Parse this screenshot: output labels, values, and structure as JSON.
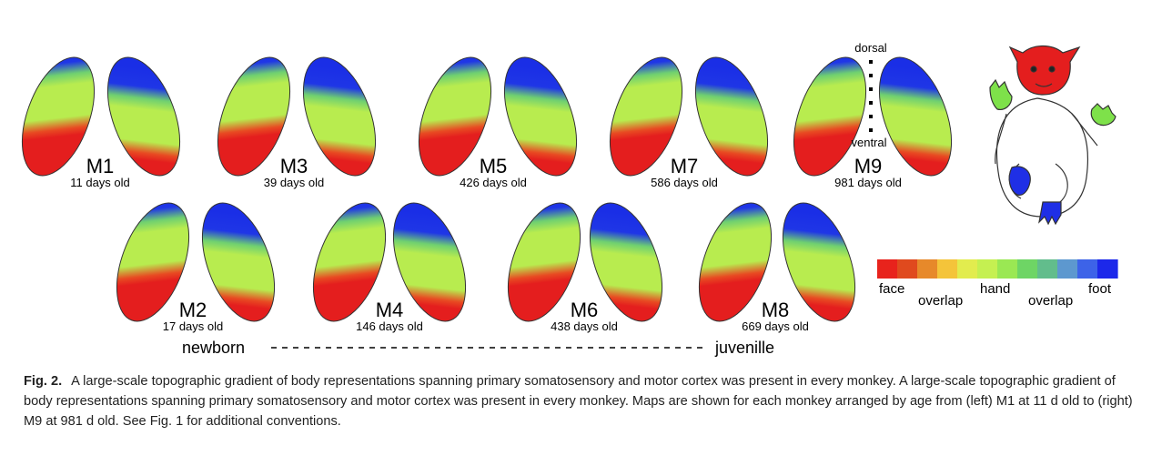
{
  "monkeys": [
    {
      "id": "M1",
      "age": "11 days old"
    },
    {
      "id": "M3",
      "age": "39 days old"
    },
    {
      "id": "M5",
      "age": "426 days old"
    },
    {
      "id": "M7",
      "age": "586 days old"
    },
    {
      "id": "M9",
      "age": "981 days old"
    },
    {
      "id": "M2",
      "age": "17 days old"
    },
    {
      "id": "M4",
      "age": "146 days old"
    },
    {
      "id": "M6",
      "age": "438 days old"
    },
    {
      "id": "M8",
      "age": "669 days old"
    }
  ],
  "axis": {
    "top": "dorsal",
    "bottom": "ventral"
  },
  "timeline": {
    "start": "newborn",
    "end": "juvenille"
  },
  "legend": {
    "labels": [
      "face",
      "overlap",
      "hand",
      "overlap",
      "foot"
    ],
    "colors": [
      "#e8231c",
      "#e04a1e",
      "#e7892a",
      "#f4c43a",
      "#e2ec4e",
      "#c5f051",
      "#9ae853",
      "#6ed565",
      "#62bd8c",
      "#5d98cf",
      "#3d63e8",
      "#1c28ea"
    ]
  },
  "colors": {
    "face": "#e41e1e",
    "hand": "#b4ec4e",
    "foot": "#1a2ee6",
    "outline": "#222222"
  },
  "icons": {
    "body_map": "monkey-body-map-icon"
  },
  "caption": {
    "label": "Fig. 2.",
    "text": "A large-scale topographic gradient of body representations spanning primary somatosensory and motor cortex was present in every monkey. A large-scale topographic gradient of body representations spanning primary somatosensory and motor cortex was present in every monkey. Maps are shown for each monkey arranged by age from (left) M1 at 11 d old to (right) M9 at 981 d old. See Fig. 1 for additional conventions."
  }
}
